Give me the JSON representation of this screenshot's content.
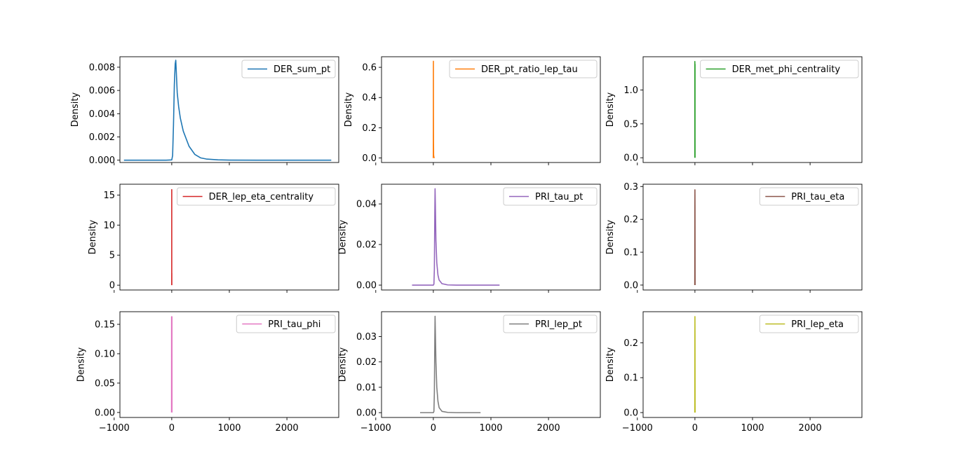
{
  "chart_data": {
    "type": "line",
    "layout": "3x3 grid, shared x-axis",
    "xlim": [
      -900,
      2900
    ],
    "x_ticks": [
      -1000,
      0,
      1000,
      2000
    ],
    "x_tick_labels": [
      "−1000",
      "0",
      "1000",
      "2000"
    ],
    "legend_position": "top-right",
    "panels": [
      {
        "ylabel": "Density",
        "ylim": [
          -0.0002,
          0.0089
        ],
        "y_ticks": [
          0,
          0.002,
          0.004,
          0.006,
          0.008
        ],
        "y_tick_labels": [
          "0.000",
          "0.002",
          "0.004",
          "0.006",
          "0.008"
        ],
        "series": {
          "name": "DER_sum_pt",
          "color": "#1f77b4",
          "x": [
            -830,
            -100,
            0,
            15,
            30,
            45,
            60,
            70,
            80,
            95,
            120,
            150,
            200,
            300,
            400,
            500,
            600,
            800,
            1000,
            1500,
            2000,
            2770
          ],
          "y": [
            0,
            0,
            2e-05,
            0.0004,
            0.003,
            0.0065,
            0.0083,
            0.0086,
            0.0075,
            0.0058,
            0.0046,
            0.0036,
            0.0025,
            0.0012,
            0.0005,
            0.0002,
            0.0001,
            3e-05,
            1e-05,
            0,
            0,
            0
          ]
        }
      },
      {
        "ylabel": "Density",
        "ylim": [
          -0.03,
          0.67
        ],
        "y_ticks": [
          0,
          0.2,
          0.4,
          0.6
        ],
        "y_tick_labels": [
          "0.0",
          "0.2",
          "0.4",
          "0.6"
        ],
        "series": {
          "name": "DER_pt_ratio_lep_tau",
          "color": "#ff7f0e",
          "x": [
            -3,
            -1,
            0,
            0.5,
            1,
            1.5,
            2,
            3,
            5,
            10,
            20
          ],
          "y": [
            0,
            0.01,
            0.3,
            0.6,
            0.64,
            0.5,
            0.3,
            0.12,
            0.02,
            0.005,
            0
          ]
        }
      },
      {
        "ylabel": "Density",
        "ylim": [
          -0.07,
          1.49
        ],
        "y_ticks": [
          0,
          0.5,
          1.0
        ],
        "y_tick_labels": [
          "0.0",
          "0.5",
          "1.0"
        ],
        "series": {
          "name": "DER_met_phi_centrality",
          "color": "#2ca02c",
          "x": [
            -2,
            -1.5,
            -1.41,
            -1,
            -0.5,
            0,
            0.5,
            1,
            1.41,
            1.5,
            2
          ],
          "y": [
            0,
            0.2,
            1.42,
            0.6,
            0.35,
            0.3,
            0.4,
            0.7,
            1.38,
            0.3,
            0
          ]
        }
      },
      {
        "ylabel": "Density",
        "ylim": [
          -0.8,
          16.8
        ],
        "y_ticks": [
          0,
          5,
          10,
          15
        ],
        "y_tick_labels": [
          "0",
          "5",
          "10",
          "15"
        ],
        "series": {
          "name": "DER_lep_eta_centrality",
          "color": "#d62728",
          "x": [
            -0.5,
            -0.1,
            0,
            0.1,
            0.5,
            0.8,
            1.0,
            1.1,
            1.5
          ],
          "y": [
            0,
            2,
            15.9,
            2,
            0.5,
            1.0,
            2.0,
            0.5,
            0
          ]
        }
      },
      {
        "ylabel": "Density",
        "ylim": [
          -0.0024,
          0.0497
        ],
        "y_ticks": [
          0,
          0.02,
          0.04
        ],
        "y_tick_labels": [
          "0.00",
          "0.02",
          "0.04"
        ],
        "series": {
          "name": "PRI_tau_pt",
          "color": "#9467bd",
          "x": [
            -370,
            -50,
            0,
            10,
            18,
            25,
            30,
            35,
            45,
            60,
            80,
            100,
            150,
            250,
            400,
            700,
            1150
          ],
          "y": [
            0,
            0,
            0,
            0.0005,
            0.008,
            0.035,
            0.0475,
            0.04,
            0.022,
            0.011,
            0.005,
            0.0025,
            0.0007,
            0.0001,
            0,
            0,
            0
          ]
        }
      },
      {
        "ylabel": "Density",
        "ylim": [
          -0.015,
          0.307
        ],
        "y_ticks": [
          0,
          0.1,
          0.2,
          0.3
        ],
        "y_tick_labels": [
          "0.0",
          "0.1",
          "0.2",
          "0.3"
        ],
        "series": {
          "name": "PRI_tau_eta",
          "color": "#8c564b",
          "x": [
            -3,
            -2.5,
            -2,
            -1,
            0,
            1,
            2,
            2.5,
            3
          ],
          "y": [
            0,
            0.04,
            0.12,
            0.24,
            0.29,
            0.24,
            0.12,
            0.04,
            0
          ]
        }
      },
      {
        "ylabel": "Density",
        "ylim": [
          -0.0085,
          0.1715
        ],
        "y_ticks": [
          0,
          0.05,
          0.1,
          0.15
        ],
        "y_tick_labels": [
          "0.00",
          "0.05",
          "0.10",
          "0.15"
        ],
        "series": {
          "name": "PRI_tau_phi",
          "color": "#e377c2",
          "x": [
            -4,
            -3.5,
            -3.14,
            -2,
            0,
            2,
            3.14,
            3.5,
            4
          ],
          "y": [
            0,
            0.08,
            0.163,
            0.16,
            0.16,
            0.16,
            0.163,
            0.08,
            0
          ]
        }
      },
      {
        "ylabel": "Density",
        "ylim": [
          -0.0019,
          0.0398
        ],
        "y_ticks": [
          0,
          0.01,
          0.02,
          0.03
        ],
        "y_tick_labels": [
          "0.00",
          "0.01",
          "0.02",
          "0.03"
        ],
        "series": {
          "name": "PRI_lep_pt",
          "color": "#7f7f7f",
          "x": [
            -230,
            -50,
            0,
            10,
            18,
            25,
            30,
            35,
            45,
            60,
            80,
            100,
            150,
            250,
            400,
            600,
            820
          ],
          "y": [
            0,
            0,
            0,
            0.0005,
            0.008,
            0.028,
            0.038,
            0.032,
            0.02,
            0.01,
            0.0045,
            0.002,
            0.0005,
            0.0001,
            0,
            0,
            0
          ]
        }
      },
      {
        "ylabel": "Density",
        "ylim": [
          -0.014,
          0.289
        ],
        "y_ticks": [
          0,
          0.1,
          0.2
        ],
        "y_tick_labels": [
          "0.0",
          "0.1",
          "0.2"
        ],
        "series": {
          "name": "PRI_lep_eta",
          "color": "#bcbd22",
          "x": [
            -3,
            -2.5,
            -2,
            -1,
            0,
            1,
            2,
            2.5,
            3
          ],
          "y": [
            0,
            0.03,
            0.1,
            0.22,
            0.275,
            0.22,
            0.1,
            0.03,
            0
          ]
        }
      }
    ]
  }
}
